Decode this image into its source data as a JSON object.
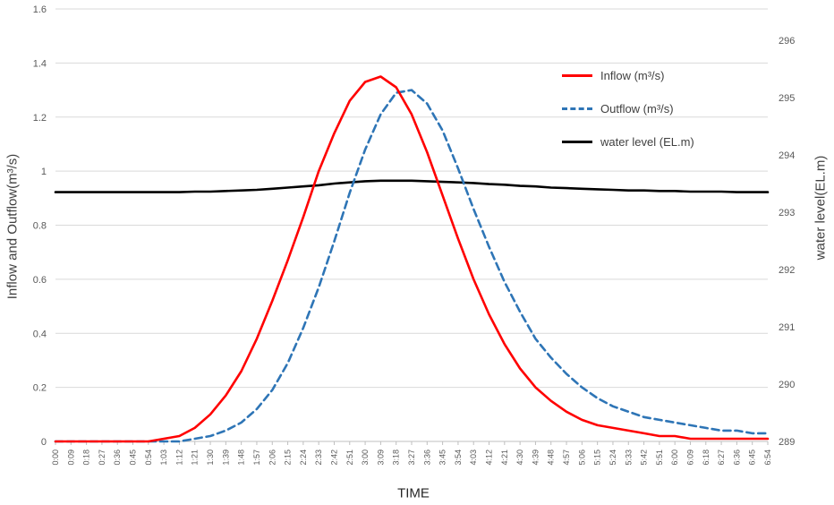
{
  "chart_data": {
    "type": "line",
    "title": "",
    "xlabel": "TIME",
    "ylabel_left": "Inflow and Outflow(m³/s)",
    "ylabel_right": "water level(EL.m)",
    "grid": true,
    "legend_position": "inside-top-right",
    "colors": {
      "inflow": "#ff0000",
      "outflow": "#2e75b6",
      "water_level": "#000000",
      "gridline": "#d9d9d9",
      "axis_line": "#bfbfbf",
      "tick_text": "#595959"
    },
    "left_axis": {
      "min": 0,
      "max": 1.6,
      "ticks": [
        "0",
        "0.2",
        "0.4",
        "0.6",
        "0.8",
        "1",
        "1.2",
        "1.4",
        "1.6"
      ]
    },
    "right_axis": {
      "min": 289,
      "max": 296,
      "ticks": [
        "289",
        "290",
        "291",
        "292",
        "293",
        "294",
        "295",
        "296"
      ]
    },
    "x_categories": [
      "0:00",
      "0:09",
      "0:18",
      "0:27",
      "0:36",
      "0:45",
      "0:54",
      "1:03",
      "1:12",
      "1:21",
      "1:30",
      "1:39",
      "1:48",
      "1:57",
      "2:06",
      "2:15",
      "2:24",
      "2:33",
      "2:42",
      "2:51",
      "3:00",
      "3:09",
      "3:18",
      "3:27",
      "3:36",
      "3:45",
      "3:54",
      "4:03",
      "4:12",
      "4:21",
      "4:30",
      "4:39",
      "4:48",
      "4:57",
      "5:06",
      "5:15",
      "5:24",
      "5:33",
      "5:42",
      "5:51",
      "6:00",
      "6:09",
      "6:18",
      "6:27",
      "6:36",
      "6:45",
      "6:54"
    ],
    "series": [
      {
        "name": "Inflow (m³/s)",
        "axis": "left",
        "color": "#ff0000",
        "style": "solid",
        "values": [
          0,
          0,
          0,
          0,
          0,
          0,
          0,
          0.01,
          0.02,
          0.05,
          0.1,
          0.17,
          0.26,
          0.38,
          0.52,
          0.67,
          0.83,
          1.0,
          1.14,
          1.26,
          1.33,
          1.35,
          1.31,
          1.21,
          1.07,
          0.91,
          0.75,
          0.6,
          0.47,
          0.36,
          0.27,
          0.2,
          0.15,
          0.11,
          0.08,
          0.06,
          0.05,
          0.04,
          0.03,
          0.02,
          0.02,
          0.01,
          0.01,
          0.01,
          0.01,
          0.01,
          0.01
        ]
      },
      {
        "name": "Outflow (m³/s)",
        "axis": "left",
        "color": "#2e75b6",
        "style": "dashed",
        "values": [
          0,
          0,
          0,
          0,
          0,
          0,
          0,
          0,
          0,
          0.01,
          0.02,
          0.04,
          0.07,
          0.12,
          0.19,
          0.29,
          0.42,
          0.57,
          0.74,
          0.92,
          1.08,
          1.21,
          1.29,
          1.3,
          1.25,
          1.15,
          1.01,
          0.86,
          0.72,
          0.59,
          0.48,
          0.38,
          0.31,
          0.25,
          0.2,
          0.16,
          0.13,
          0.11,
          0.09,
          0.08,
          0.07,
          0.06,
          0.05,
          0.04,
          0.04,
          0.03,
          0.03
        ]
      },
      {
        "name": "water level (EL.m)",
        "axis": "right",
        "color": "#000000",
        "style": "solid",
        "values": [
          293.35,
          293.35,
          293.35,
          293.35,
          293.35,
          293.35,
          293.35,
          293.35,
          293.35,
          293.36,
          293.36,
          293.37,
          293.38,
          293.39,
          293.41,
          293.43,
          293.45,
          293.47,
          293.5,
          293.52,
          293.54,
          293.55,
          293.55,
          293.55,
          293.54,
          293.53,
          293.52,
          293.51,
          293.49,
          293.48,
          293.46,
          293.45,
          293.43,
          293.42,
          293.41,
          293.4,
          293.39,
          293.38,
          293.38,
          293.37,
          293.37,
          293.36,
          293.36,
          293.36,
          293.35,
          293.35,
          293.35
        ]
      }
    ]
  }
}
